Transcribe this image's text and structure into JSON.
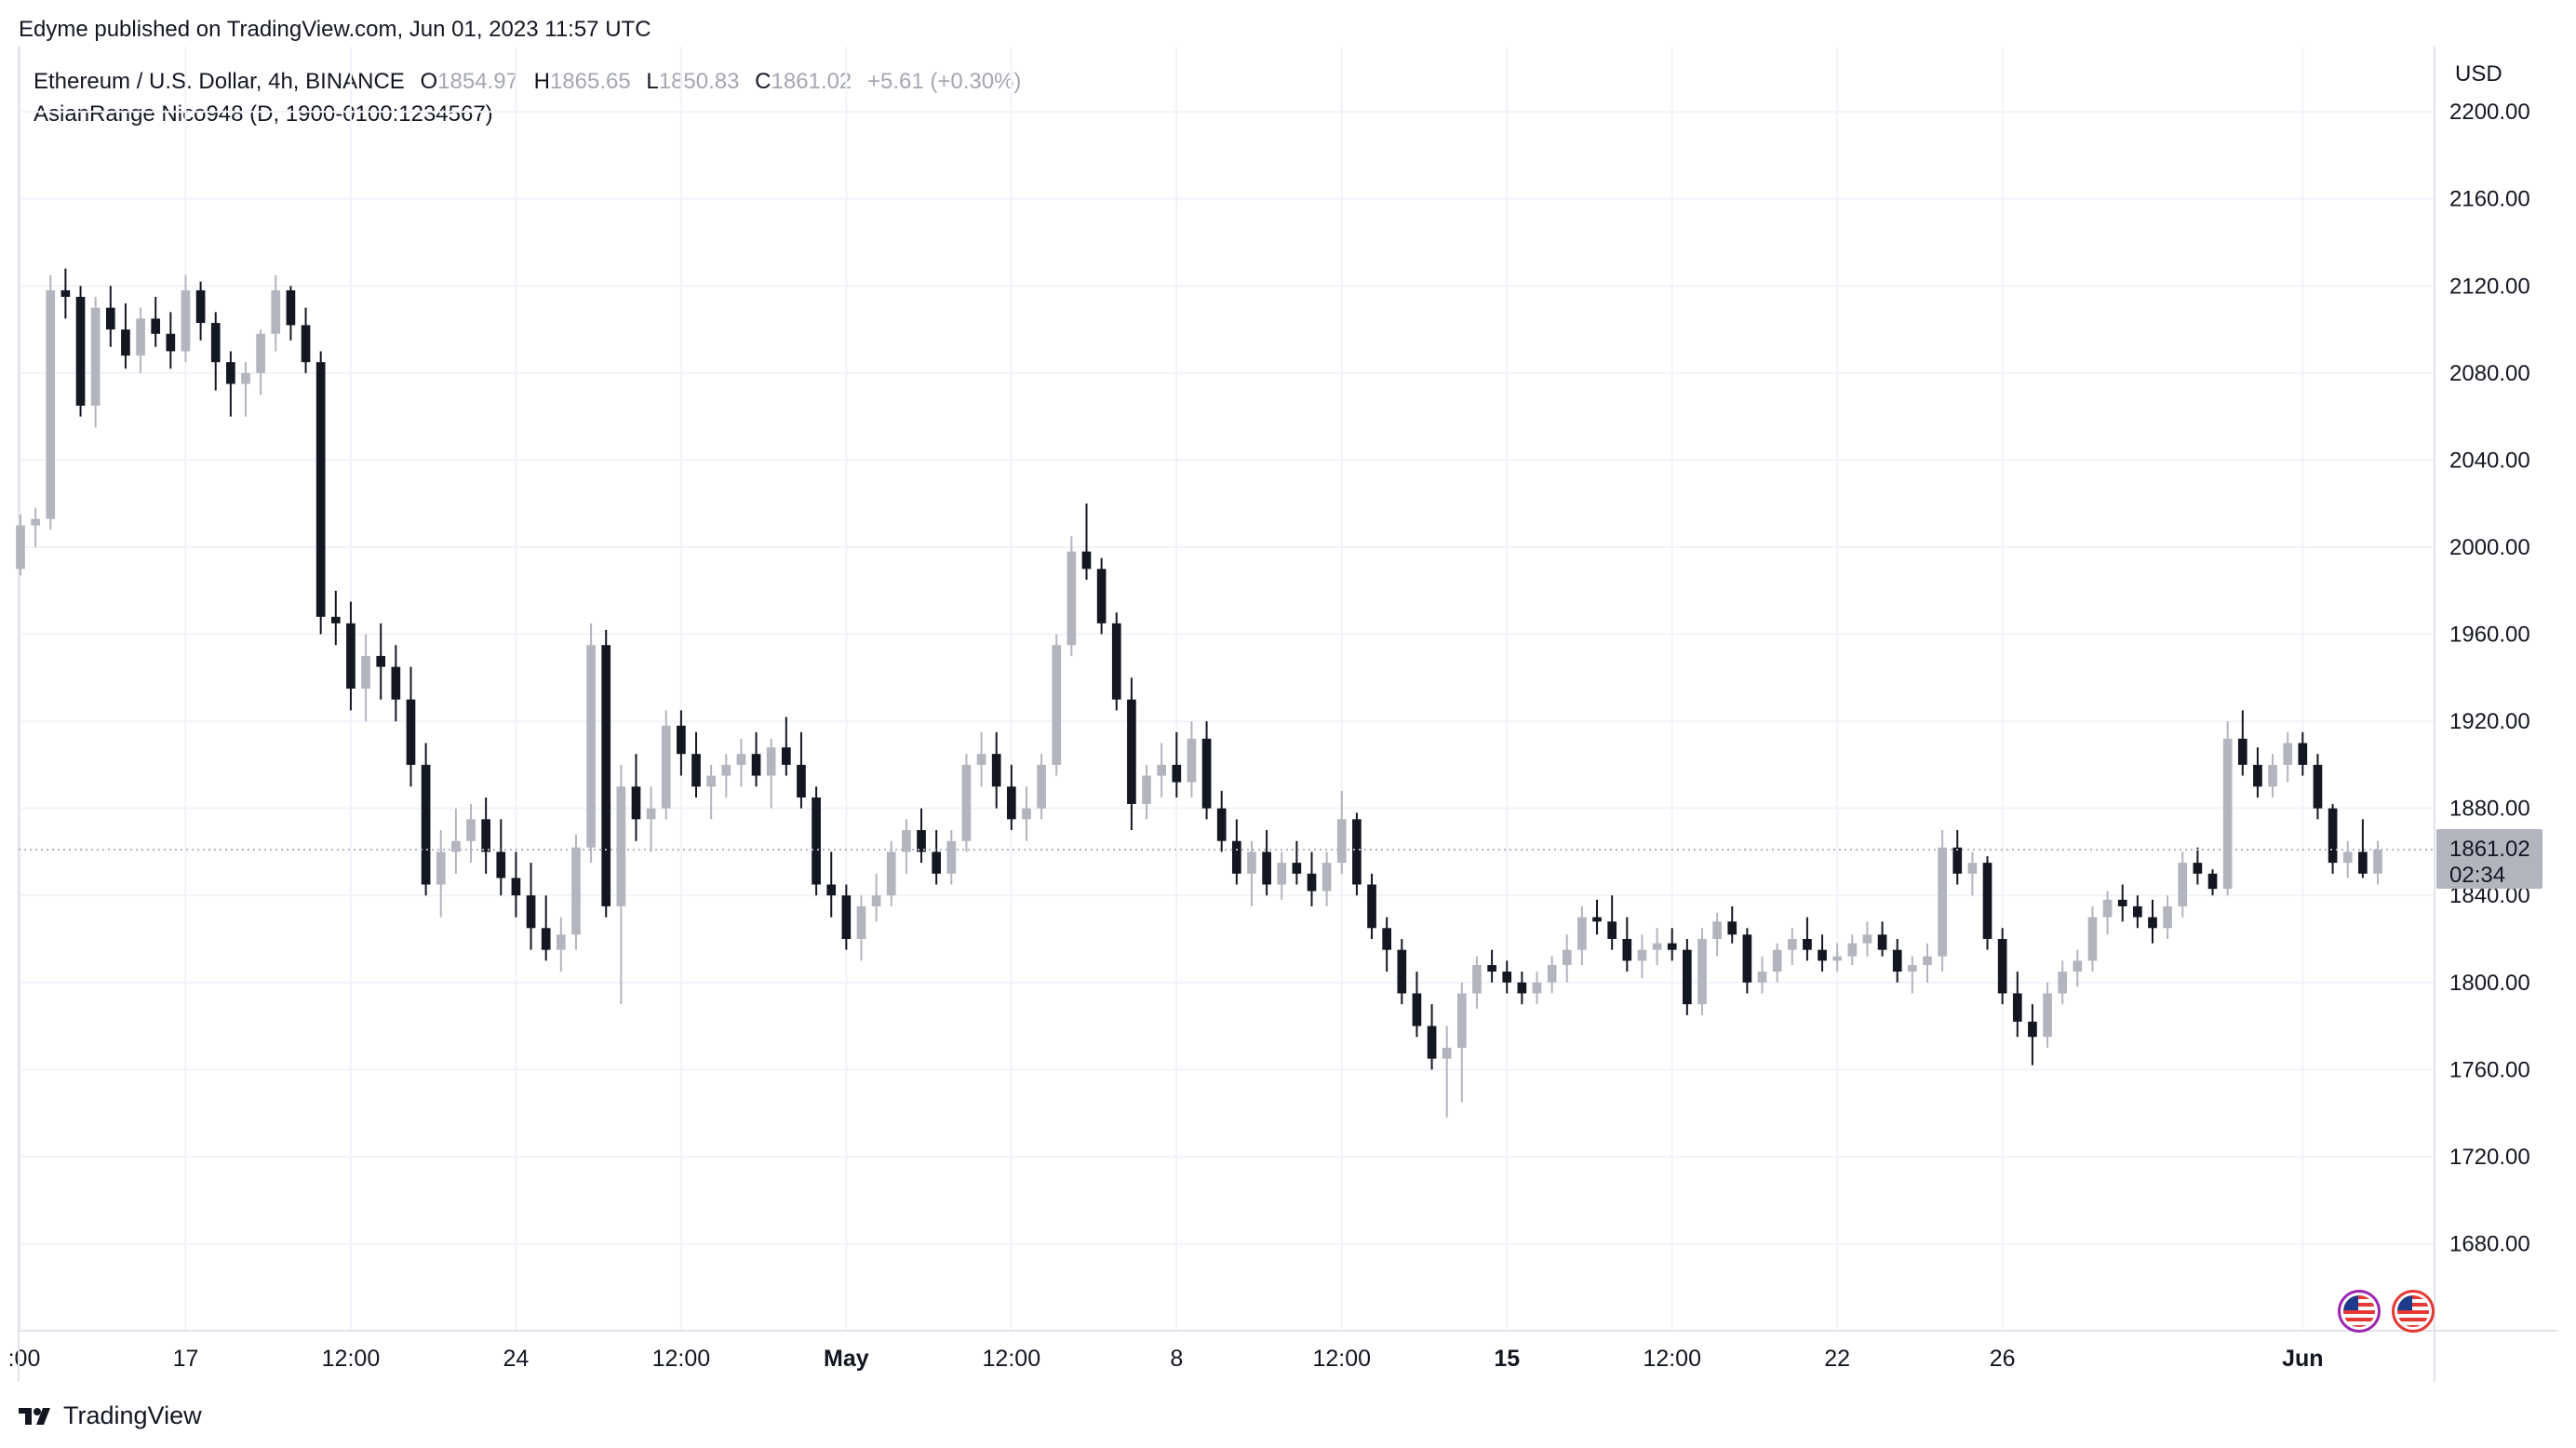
{
  "publisher": "Edyme published on TradingView.com, Jun 01, 2023 11:57 UTC",
  "legend": {
    "symbol": "Ethereum / U.S. Dollar, 4h, BINANCE",
    "o_label": "O",
    "o": "1854.97",
    "h_label": "H",
    "h": "1865.65",
    "l_label": "L",
    "l": "1850.83",
    "c_label": "C",
    "c": "1861.02",
    "change": "+5.61 (+0.30%)"
  },
  "indicator": "AsianRange Nico948 (D, 1900-0100:1234567)",
  "currency": "USD",
  "price_tag": {
    "price": "1861.02",
    "countdown": "02:34"
  },
  "footer": "TradingView",
  "colors": {
    "up": "#b2b5be",
    "down": "#131722",
    "grid": "#f0f3fa",
    "tag_bg": "#b2b5be"
  },
  "chart_data": {
    "type": "candlestick",
    "title": "Ethereum / U.S. Dollar, 4h, BINANCE",
    "ylim": [
      1640,
      2230
    ],
    "y_ticks": [
      1680,
      1720,
      1760,
      1800,
      1840,
      1880,
      1920,
      1960,
      2000,
      2040,
      2080,
      2120,
      2160,
      2200
    ],
    "y_tick_labels": [
      "1680.00",
      "1720.00",
      "1760.00",
      "1800.00",
      "1840.00",
      "1880.00",
      "1920.00",
      "1960.00",
      "2000.00",
      "2040.00",
      "2080.00",
      "2120.00",
      "2160.00",
      "2200.00"
    ],
    "x_tick_labels": [
      ":00",
      "17",
      "12:00",
      "24",
      "12:00",
      "May",
      "12:00",
      "8",
      "12:00",
      "15",
      "12:00",
      "22",
      "26",
      "Jun"
    ],
    "x_tick_bold": [
      false,
      false,
      false,
      false,
      false,
      true,
      false,
      false,
      false,
      true,
      false,
      false,
      false,
      true
    ],
    "x_tick_index": [
      0,
      11,
      22,
      33,
      44,
      55,
      66,
      77,
      88,
      99,
      110,
      121,
      132,
      152
    ],
    "last_price": 1861.02,
    "candles": [
      [
        1990,
        2015,
        1987,
        2010
      ],
      [
        2010,
        2018,
        2000,
        2013
      ],
      [
        2013,
        2125,
        2008,
        2118
      ],
      [
        2118,
        2128,
        2105,
        2115
      ],
      [
        2115,
        2120,
        2060,
        2065
      ],
      [
        2065,
        2115,
        2055,
        2110
      ],
      [
        2110,
        2120,
        2092,
        2100
      ],
      [
        2100,
        2112,
        2082,
        2088
      ],
      [
        2088,
        2110,
        2080,
        2105
      ],
      [
        2105,
        2115,
        2092,
        2098
      ],
      [
        2098,
        2108,
        2082,
        2090
      ],
      [
        2090,
        2125,
        2085,
        2118
      ],
      [
        2118,
        2122,
        2095,
        2103
      ],
      [
        2103,
        2108,
        2072,
        2085
      ],
      [
        2085,
        2090,
        2060,
        2075
      ],
      [
        2075,
        2085,
        2060,
        2080
      ],
      [
        2080,
        2100,
        2070,
        2098
      ],
      [
        2098,
        2125,
        2090,
        2118
      ],
      [
        2118,
        2120,
        2095,
        2102
      ],
      [
        2102,
        2110,
        2080,
        2085
      ],
      [
        2085,
        2090,
        1960,
        1968
      ],
      [
        1968,
        1980,
        1955,
        1965
      ],
      [
        1965,
        1975,
        1925,
        1935
      ],
      [
        1935,
        1960,
        1920,
        1950
      ],
      [
        1950,
        1965,
        1930,
        1945
      ],
      [
        1945,
        1955,
        1920,
        1930
      ],
      [
        1930,
        1945,
        1890,
        1900
      ],
      [
        1900,
        1910,
        1840,
        1845
      ],
      [
        1845,
        1870,
        1830,
        1860
      ],
      [
        1860,
        1880,
        1850,
        1865
      ],
      [
        1865,
        1882,
        1855,
        1875
      ],
      [
        1875,
        1885,
        1850,
        1860
      ],
      [
        1860,
        1875,
        1840,
        1848
      ],
      [
        1848,
        1860,
        1830,
        1840
      ],
      [
        1840,
        1855,
        1815,
        1825
      ],
      [
        1825,
        1840,
        1810,
        1815
      ],
      [
        1815,
        1830,
        1805,
        1822
      ],
      [
        1822,
        1868,
        1815,
        1862
      ],
      [
        1862,
        1965,
        1855,
        1955
      ],
      [
        1955,
        1962,
        1830,
        1835
      ],
      [
        1835,
        1900,
        1790,
        1890
      ],
      [
        1890,
        1905,
        1865,
        1875
      ],
      [
        1875,
        1890,
        1860,
        1880
      ],
      [
        1880,
        1925,
        1875,
        1918
      ],
      [
        1918,
        1925,
        1895,
        1905
      ],
      [
        1905,
        1915,
        1885,
        1890
      ],
      [
        1890,
        1900,
        1875,
        1895
      ],
      [
        1895,
        1905,
        1885,
        1900
      ],
      [
        1900,
        1912,
        1890,
        1905
      ],
      [
        1905,
        1915,
        1890,
        1895
      ],
      [
        1895,
        1912,
        1880,
        1908
      ],
      [
        1908,
        1922,
        1895,
        1900
      ],
      [
        1900,
        1915,
        1880,
        1885
      ],
      [
        1885,
        1890,
        1840,
        1845
      ],
      [
        1845,
        1860,
        1830,
        1840
      ],
      [
        1840,
        1845,
        1815,
        1820
      ],
      [
        1820,
        1840,
        1810,
        1835
      ],
      [
        1835,
        1850,
        1828,
        1840
      ],
      [
        1840,
        1865,
        1835,
        1860
      ],
      [
        1860,
        1875,
        1850,
        1870
      ],
      [
        1870,
        1880,
        1855,
        1860
      ],
      [
        1860,
        1870,
        1845,
        1850
      ],
      [
        1850,
        1870,
        1845,
        1865
      ],
      [
        1865,
        1905,
        1860,
        1900
      ],
      [
        1900,
        1915,
        1890,
        1905
      ],
      [
        1905,
        1915,
        1880,
        1890
      ],
      [
        1890,
        1900,
        1870,
        1875
      ],
      [
        1875,
        1890,
        1865,
        1880
      ],
      [
        1880,
        1905,
        1875,
        1900
      ],
      [
        1900,
        1960,
        1895,
        1955
      ],
      [
        1955,
        2005,
        1950,
        1998
      ],
      [
        1998,
        2020,
        1985,
        1990
      ],
      [
        1990,
        1995,
        1960,
        1965
      ],
      [
        1965,
        1970,
        1925,
        1930
      ],
      [
        1930,
        1940,
        1870,
        1882
      ],
      [
        1882,
        1900,
        1875,
        1895
      ],
      [
        1895,
        1910,
        1885,
        1900
      ],
      [
        1900,
        1915,
        1885,
        1892
      ],
      [
        1892,
        1920,
        1885,
        1912
      ],
      [
        1912,
        1920,
        1875,
        1880
      ],
      [
        1880,
        1888,
        1860,
        1865
      ],
      [
        1865,
        1875,
        1845,
        1850
      ],
      [
        1850,
        1865,
        1835,
        1860
      ],
      [
        1860,
        1870,
        1840,
        1845
      ],
      [
        1845,
        1860,
        1838,
        1855
      ],
      [
        1855,
        1865,
        1845,
        1850
      ],
      [
        1850,
        1860,
        1835,
        1842
      ],
      [
        1842,
        1860,
        1835,
        1855
      ],
      [
        1855,
        1888,
        1850,
        1875
      ],
      [
        1875,
        1878,
        1840,
        1845
      ],
      [
        1845,
        1850,
        1820,
        1825
      ],
      [
        1825,
        1830,
        1805,
        1815
      ],
      [
        1815,
        1820,
        1790,
        1795
      ],
      [
        1795,
        1805,
        1775,
        1780
      ],
      [
        1780,
        1790,
        1760,
        1765
      ],
      [
        1765,
        1780,
        1738,
        1770
      ],
      [
        1770,
        1800,
        1745,
        1795
      ],
      [
        1795,
        1812,
        1788,
        1808
      ],
      [
        1808,
        1815,
        1800,
        1805
      ],
      [
        1805,
        1810,
        1795,
        1800
      ],
      [
        1800,
        1805,
        1790,
        1795
      ],
      [
        1795,
        1805,
        1790,
        1800
      ],
      [
        1800,
        1812,
        1795,
        1808
      ],
      [
        1808,
        1822,
        1800,
        1815
      ],
      [
        1815,
        1835,
        1808,
        1830
      ],
      [
        1830,
        1838,
        1822,
        1828
      ],
      [
        1828,
        1840,
        1815,
        1820
      ],
      [
        1820,
        1830,
        1805,
        1810
      ],
      [
        1810,
        1822,
        1802,
        1815
      ],
      [
        1815,
        1825,
        1808,
        1818
      ],
      [
        1818,
        1825,
        1810,
        1815
      ],
      [
        1815,
        1820,
        1785,
        1790
      ],
      [
        1790,
        1825,
        1785,
        1820
      ],
      [
        1820,
        1832,
        1812,
        1828
      ],
      [
        1828,
        1835,
        1818,
        1822
      ],
      [
        1822,
        1825,
        1795,
        1800
      ],
      [
        1800,
        1812,
        1795,
        1805
      ],
      [
        1805,
        1818,
        1800,
        1815
      ],
      [
        1815,
        1825,
        1808,
        1820
      ],
      [
        1820,
        1830,
        1810,
        1815
      ],
      [
        1815,
        1822,
        1805,
        1810
      ],
      [
        1810,
        1818,
        1805,
        1812
      ],
      [
        1812,
        1822,
        1808,
        1818
      ],
      [
        1818,
        1828,
        1812,
        1822
      ],
      [
        1822,
        1828,
        1812,
        1815
      ],
      [
        1815,
        1820,
        1800,
        1805
      ],
      [
        1805,
        1812,
        1795,
        1808
      ],
      [
        1808,
        1818,
        1800,
        1812
      ],
      [
        1812,
        1870,
        1805,
        1862
      ],
      [
        1862,
        1870,
        1845,
        1850
      ],
      [
        1850,
        1860,
        1840,
        1855
      ],
      [
        1855,
        1858,
        1815,
        1820
      ],
      [
        1820,
        1825,
        1790,
        1795
      ],
      [
        1795,
        1805,
        1775,
        1782
      ],
      [
        1782,
        1790,
        1762,
        1775
      ],
      [
        1775,
        1800,
        1770,
        1795
      ],
      [
        1795,
        1810,
        1790,
        1805
      ],
      [
        1805,
        1815,
        1798,
        1810
      ],
      [
        1810,
        1835,
        1805,
        1830
      ],
      [
        1830,
        1842,
        1822,
        1838
      ],
      [
        1838,
        1845,
        1828,
        1835
      ],
      [
        1835,
        1840,
        1825,
        1830
      ],
      [
        1830,
        1838,
        1818,
        1825
      ],
      [
        1825,
        1840,
        1820,
        1835
      ],
      [
        1835,
        1860,
        1830,
        1855
      ],
      [
        1855,
        1862,
        1845,
        1850
      ],
      [
        1850,
        1852,
        1840,
        1843
      ],
      [
        1843,
        1920,
        1840,
        1912
      ],
      [
        1912,
        1925,
        1895,
        1900
      ],
      [
        1900,
        1908,
        1885,
        1890
      ],
      [
        1890,
        1905,
        1885,
        1900
      ],
      [
        1900,
        1915,
        1892,
        1910
      ],
      [
        1910,
        1915,
        1895,
        1900
      ],
      [
        1900,
        1905,
        1875,
        1880
      ],
      [
        1880,
        1882,
        1850,
        1855
      ],
      [
        1855,
        1865,
        1848,
        1860
      ],
      [
        1860,
        1875,
        1848,
        1850
      ],
      [
        1850,
        1865,
        1845,
        1861.02
      ]
    ]
  }
}
